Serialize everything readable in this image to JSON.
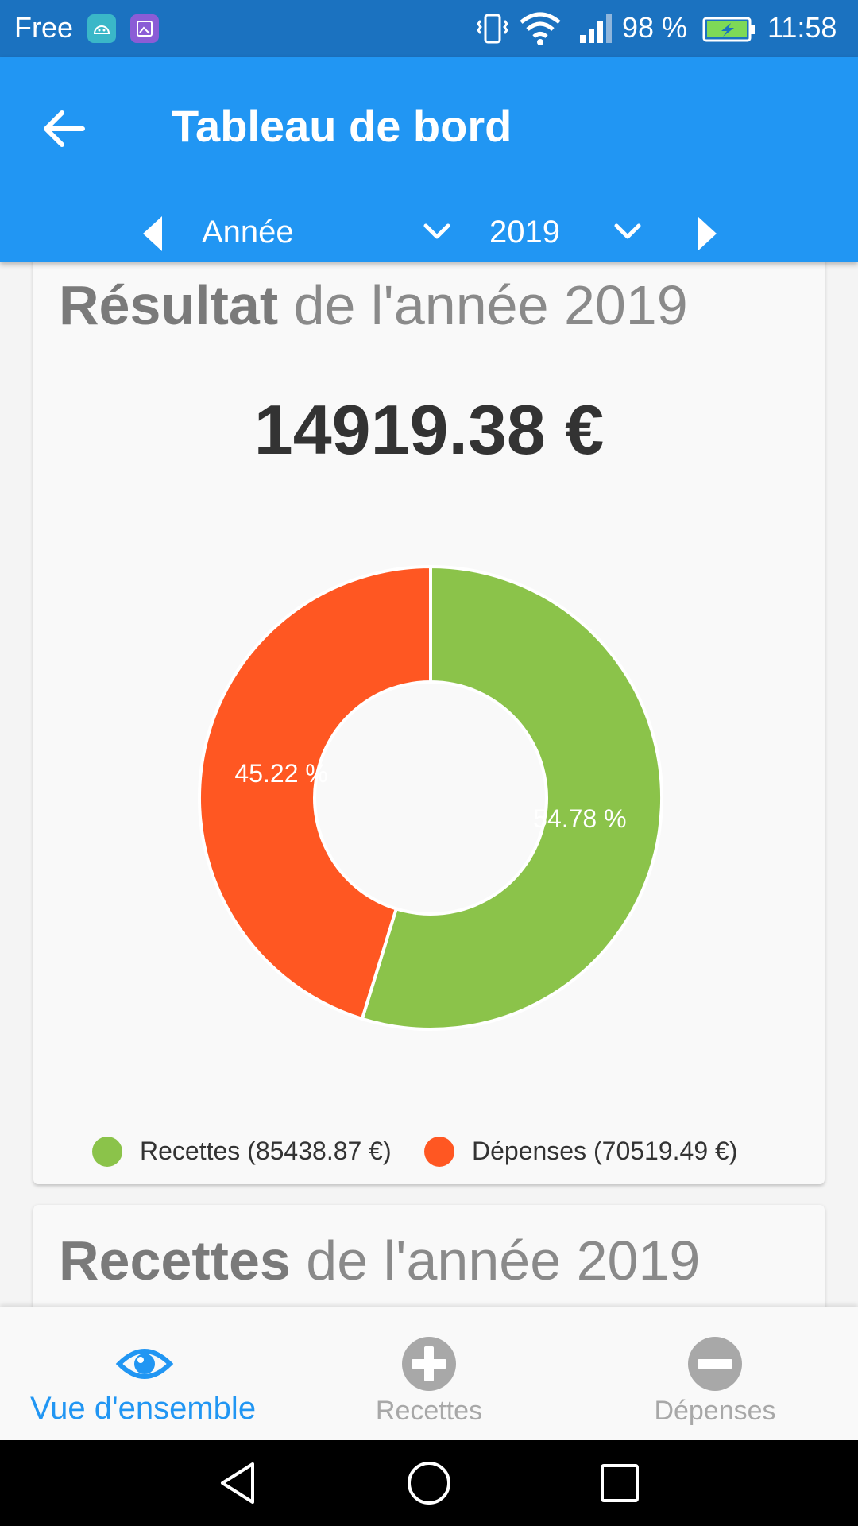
{
  "status_bar": {
    "carrier": "Free",
    "battery_percent": "98 %",
    "time": "11:58",
    "icons": [
      "android-debug-icon",
      "gallery-notification-icon",
      "vibrate-icon",
      "wifi-icon",
      "signal-icon",
      "battery-charging-icon"
    ]
  },
  "app_bar": {
    "title": "Tableau de bord",
    "back_icon": "arrow-back-icon",
    "period": {
      "selected": "Année"
    },
    "year": {
      "selected": "2019"
    },
    "prev_icon": "caret-left-icon",
    "next_icon": "caret-right-icon"
  },
  "result_card": {
    "title_bold": "Résultat",
    "title_rest": " de l'année 2019",
    "amount": "14919.38 €"
  },
  "chart_data": {
    "type": "pie",
    "variant": "donut",
    "slices": [
      {
        "name": "Recettes",
        "value": 85438.87,
        "percent": 54.78,
        "label": "54.78 %",
        "color": "#8bc34a"
      },
      {
        "name": "Dépenses",
        "value": 70519.49,
        "percent": 45.22,
        "label": "45.22 %",
        "color": "#ff5722"
      }
    ],
    "legend": [
      "Recettes (85438.87 €)",
      "Dépenses (70519.49 €)"
    ],
    "legend_placement": "bottom"
  },
  "recettes_card": {
    "title_bold": "Recettes",
    "title_rest": " de l'année 2019"
  },
  "bottom_nav": {
    "tabs": [
      {
        "label": "Vue d'ensemble",
        "icon": "eye-icon",
        "active": true
      },
      {
        "label": "Recettes",
        "icon": "plus-circle-icon",
        "active": false
      },
      {
        "label": "Dépenses",
        "icon": "minus-circle-icon",
        "active": false
      }
    ],
    "colors": {
      "active": "#2196f3",
      "inactive": "#a8a8a8"
    }
  },
  "system_nav": {
    "icons": [
      "back-triangle-icon",
      "home-circle-icon",
      "recents-square-icon"
    ]
  },
  "colors": {
    "primary": "#2196f3",
    "status_bar": "#1b72c0",
    "income": "#8bc34a",
    "expense": "#ff5722"
  }
}
